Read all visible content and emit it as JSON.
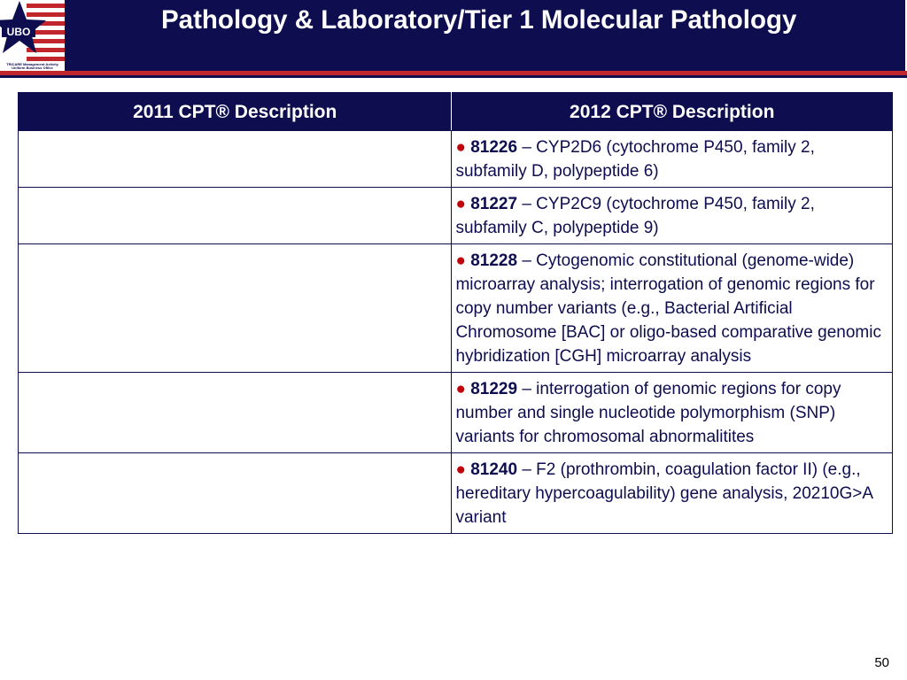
{
  "slide": {
    "title": "Pathology & Laboratory/Tier 1 Molecular Pathology",
    "page_number": "50"
  },
  "logo": {
    "text": "UBO",
    "caption_line1": "TRICARE Management Activity",
    "caption_line2": "Uniform Business Office",
    "colors": {
      "navy": "#0d0d4f",
      "red": "#c0262c"
    }
  },
  "table": {
    "headers": [
      "2011 CPT® Description",
      "2012 CPT® Description"
    ],
    "rows": [
      {
        "left": "",
        "bullet": "●",
        "code": "81226",
        "description": " – CYP2D6 (cytochrome P450, family 2, subfamily D, polypeptide 6)"
      },
      {
        "left": "",
        "bullet": "●",
        "code": "81227",
        "description": " – CYP2C9 (cytochrome P450, family 2, subfamily C, polypeptide 9)"
      },
      {
        "left": "",
        "bullet": "●",
        "code": "81228",
        "description": " – Cytogenomic constitutional (genome-wide) microarray analysis; interrogation of genomic regions for copy number variants (e.g., Bacterial Artificial Chromosome [BAC] or oligo-based comparative genomic hybridization [CGH] microarray analysis"
      },
      {
        "left": "",
        "bullet": "●",
        "code": "81229",
        "description": " – interrogation of genomic regions for copy number and single nucleotide polymorphism (SNP) variants for chromosomal abnormalitites"
      },
      {
        "left": "",
        "bullet": "●",
        "code": "81240",
        "description": " – F2 (prothrombin, coagulation factor II) (e.g., hereditary hypercoagulability) gene analysis, 20210G>A variant"
      }
    ]
  }
}
